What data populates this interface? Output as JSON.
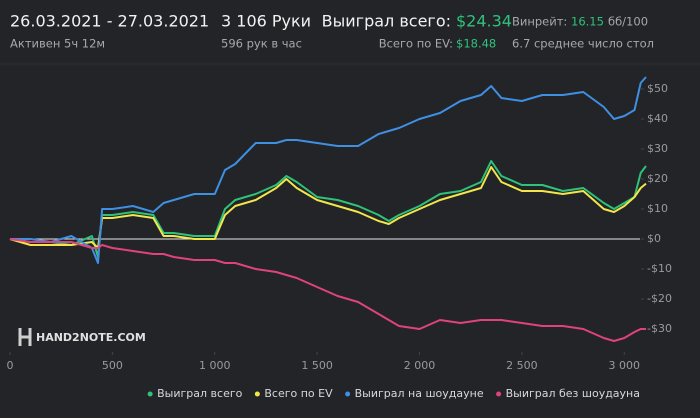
{
  "header": {
    "date_range": "26.03.2021 - 27.03.2021",
    "active": "Активен 5ч 12м",
    "hands": "3 106 Руки",
    "hands_per_hour": "596 рук в час",
    "won_total_label": "Выиграл всего:",
    "won_total": "$24.34",
    "ev_label": "Всего по EV:",
    "ev": "$18.48",
    "winrate_label": "Винрейт:",
    "winrate": "16.15",
    "winrate_unit": "бб/100",
    "tables": "6.7 среднее число стол"
  },
  "logo": "HAND2NOTE.COM",
  "chart_data": {
    "type": "line",
    "x": [
      0,
      100,
      200,
      300,
      400,
      430,
      450,
      500,
      600,
      700,
      750,
      800,
      900,
      1000,
      1050,
      1100,
      1200,
      1300,
      1350,
      1400,
      1500,
      1600,
      1700,
      1800,
      1850,
      1900,
      2000,
      2100,
      2200,
      2300,
      2350,
      2400,
      2500,
      2600,
      2700,
      2800,
      2900,
      2950,
      3000,
      3050,
      3080,
      3106
    ],
    "series": [
      {
        "name": "Выиграл всего",
        "color": "#2fc27a",
        "values": [
          0,
          -1,
          -1,
          -2,
          1,
          -6,
          8,
          8,
          9,
          8,
          2,
          2,
          1,
          1,
          10,
          13,
          15,
          18,
          21,
          19,
          14,
          13,
          11,
          8,
          6,
          8,
          11,
          15,
          16,
          19,
          26,
          21,
          18,
          18,
          16,
          17,
          12,
          10,
          12,
          14,
          22,
          24.34
        ]
      },
      {
        "name": "Всего по EV",
        "color": "#f1e64a",
        "values": [
          0,
          -2,
          -2,
          -2,
          -1,
          -3,
          7,
          7,
          8,
          7,
          1,
          1,
          0,
          0,
          8,
          11,
          13,
          17,
          20,
          17,
          13,
          11,
          9,
          6,
          5,
          7,
          10,
          13,
          15,
          17,
          24,
          19,
          16,
          16,
          15,
          16,
          10,
          9,
          11,
          14,
          17,
          18.48
        ]
      },
      {
        "name": "Выиграл на шоудауне",
        "color": "#3f8fe2",
        "values": [
          0,
          0,
          -1,
          1,
          -3,
          -8,
          10,
          10,
          11,
          9,
          12,
          13,
          15,
          15,
          23,
          25,
          32,
          32,
          33,
          33,
          32,
          31,
          31,
          35,
          36,
          37,
          40,
          42,
          46,
          48,
          51,
          47,
          46,
          48,
          48,
          49,
          44,
          40,
          41,
          43,
          52,
          54
        ]
      },
      {
        "name": "Выиграл без шоудауна",
        "color": "#e0437c",
        "values": [
          0,
          -1,
          -1,
          -1,
          -3,
          -3,
          -2,
          -3,
          -4,
          -5,
          -5,
          -6,
          -7,
          -7,
          -8,
          -8,
          -10,
          -11,
          -12,
          -13,
          -16,
          -19,
          -21,
          -25,
          -27,
          -29,
          -30,
          -27,
          -28,
          -27,
          -27,
          -27,
          -28,
          -29,
          -29,
          -30,
          -33,
          -34,
          -33,
          -31,
          -30,
          -30
        ]
      }
    ],
    "xlim": [
      0,
      3150
    ],
    "xticks": [
      0,
      500,
      {
        "value": 1000,
        "label": "1 000"
      },
      {
        "value": 1500,
        "label": "1 500"
      },
      {
        "value": 2000,
        "label": "2 000"
      },
      {
        "value": 2500,
        "label": "2 500"
      },
      {
        "value": 3000,
        "label": "3 000"
      }
    ],
    "ylim": [
      -36,
      57
    ],
    "yticks": [
      {
        "value": -30,
        "label": "-$30"
      },
      {
        "value": -20,
        "label": "-$20"
      },
      {
        "value": -10,
        "label": "-$10"
      },
      {
        "value": 0,
        "label": "$0"
      },
      {
        "value": 10,
        "label": "$10"
      },
      {
        "value": 20,
        "label": "$20"
      },
      {
        "value": 30,
        "label": "$30"
      },
      {
        "value": 40,
        "label": "$40"
      },
      {
        "value": 50,
        "label": "$50"
      }
    ],
    "zero_line": true,
    "legend": "bottom-right"
  }
}
